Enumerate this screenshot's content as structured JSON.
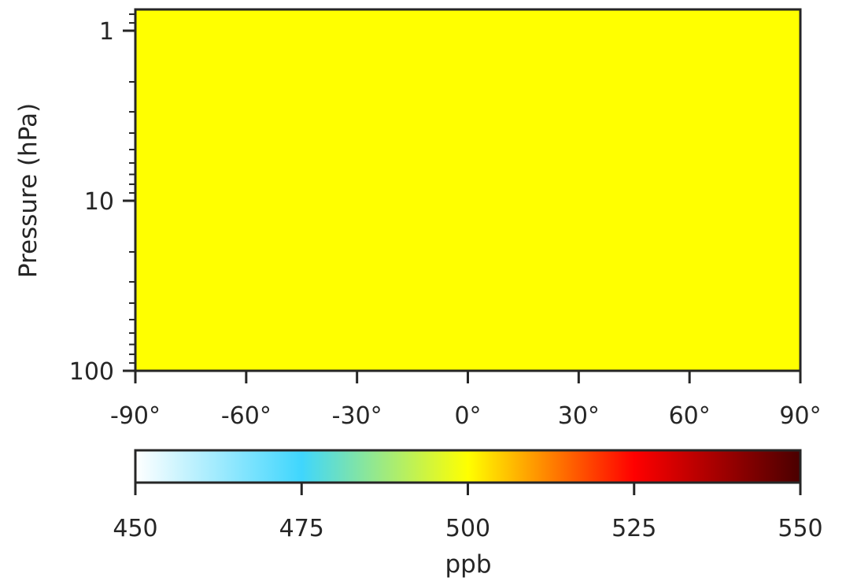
{
  "chart_data": {
    "type": "heatmap",
    "title": "",
    "xlabel": "",
    "ylabel": "Pressure (hPa)",
    "x_axis": {
      "range": [
        -90,
        90
      ],
      "ticks": [
        -90,
        -60,
        -30,
        0,
        30,
        60,
        90
      ],
      "tick_labels": [
        "-90°",
        "-60°",
        "-30°",
        "0°",
        "30°",
        "60°",
        "90°"
      ]
    },
    "y_axis": {
      "scale": "log",
      "inverted": true,
      "range": [
        100,
        0.75
      ],
      "ticks": [
        1,
        10,
        100
      ],
      "tick_labels": [
        "1",
        "10",
        "100"
      ]
    },
    "field": {
      "uniform_value": 500,
      "units": "ppb",
      "fill_color": "#ffff00"
    },
    "colorbar": {
      "label": "ppb",
      "range": [
        450,
        550
      ],
      "ticks": [
        450,
        475,
        500,
        525,
        550
      ],
      "tick_labels": [
        "450",
        "475",
        "500",
        "525",
        "550"
      ],
      "colormap_stops": [
        {
          "value": 450,
          "color": "#ffffff"
        },
        {
          "value": 475,
          "color": "#3fd6fd"
        },
        {
          "value": 500,
          "color": "#ffff00"
        },
        {
          "value": 525,
          "color": "#ff0000"
        },
        {
          "value": 550,
          "color": "#4a0000"
        }
      ]
    },
    "grid": false,
    "legend": "none"
  }
}
